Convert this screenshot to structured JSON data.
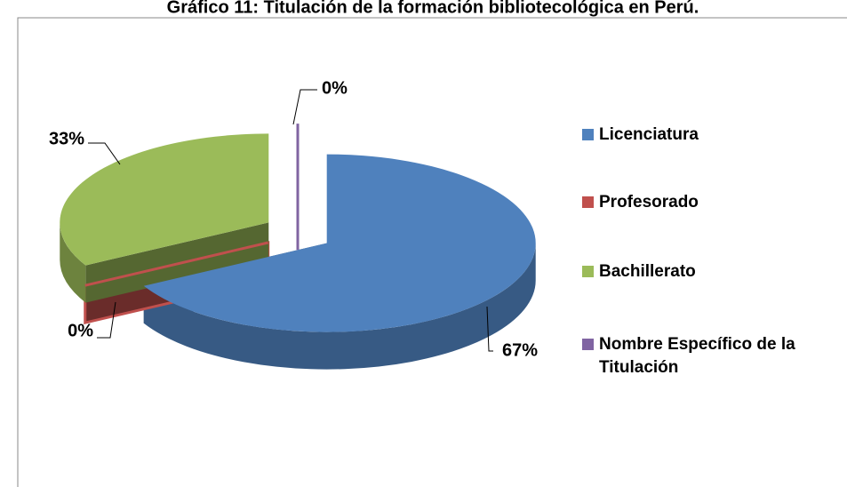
{
  "chart_data": {
    "type": "pie",
    "title": "Gráfico 11: Titulación de la formación bibliotecológica en Perú.",
    "categories": [
      "Licenciatura",
      "Profesorado",
      "Bachillerato",
      "Nombre Específico de la Titulación"
    ],
    "values": [
      67,
      0,
      33,
      0
    ],
    "value_labels": [
      "67%",
      "0%",
      "33%",
      "0%"
    ],
    "colors": [
      "#4f81bd",
      "#c0504d",
      "#9bbb59",
      "#8064a2"
    ],
    "legend": "right"
  }
}
